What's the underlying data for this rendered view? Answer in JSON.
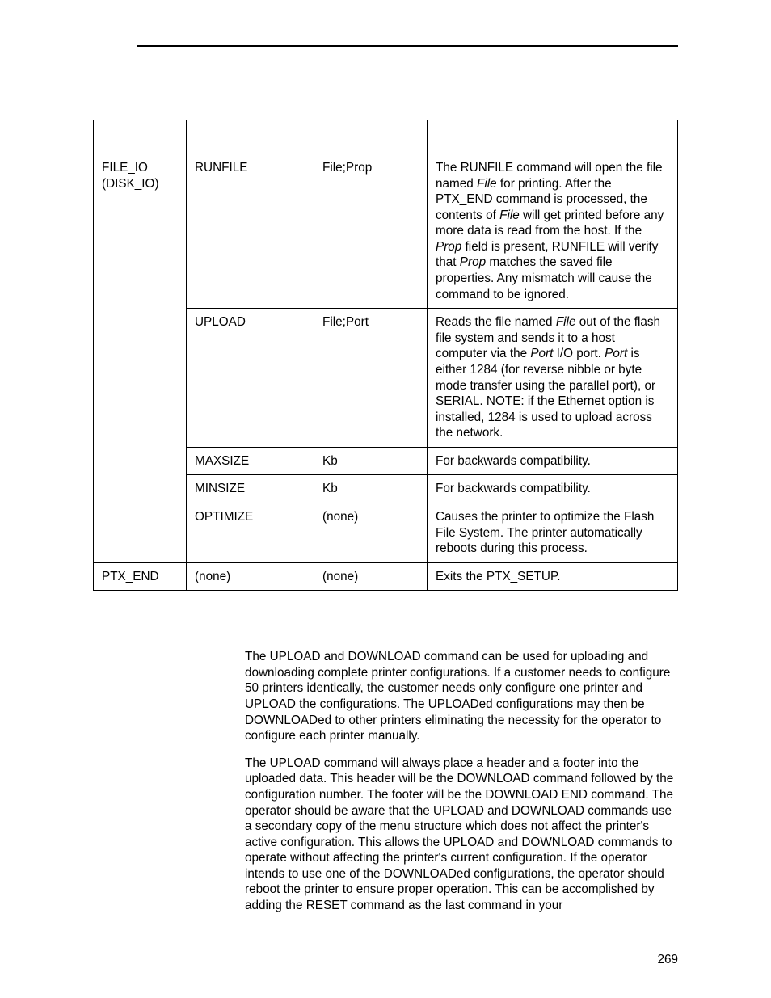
{
  "table": {
    "rows": [
      {
        "command": "FILE_IO\n(DISK_IO)",
        "command_rowspan": 5,
        "action": "RUNFILE",
        "param": "File;Prop",
        "desc_parts": [
          "The RUNFILE command will open the file named ",
          " for printing. After the PTX_END command is processed, the contents of ",
          " will get printed before any more data is read from the host. If the ",
          " field is present, RUNFILE will verify that ",
          " matches the saved file properties. Any mismatch will cause the command to be ignored."
        ],
        "desc_italics": [
          "File",
          "File",
          "Prop",
          "Prop"
        ]
      },
      {
        "action": "UPLOAD",
        "param": "File;Port",
        "desc_parts": [
          "Reads the file named ",
          " out of the flash file system and sends it to a host computer via the ",
          " I/O port. ",
          " is either 1284 (for reverse nibble or byte mode transfer using the parallel port), or SERIAL. NOTE: if the Ethernet option is installed, 1284 is used to upload across the network."
        ],
        "desc_italics": [
          "File",
          "Port",
          "Port"
        ]
      },
      {
        "action": "MAXSIZE",
        "param": "Kb",
        "desc": "For backwards compatibility."
      },
      {
        "action": "MINSIZE",
        "param": "Kb",
        "desc": "For backwards compatibility."
      },
      {
        "action": "OPTIMIZE",
        "param": "(none)",
        "desc": "Causes the printer to optimize the Flash File System. The printer automatically reboots during this process."
      },
      {
        "command": "PTX_END",
        "action": "(none)",
        "param": "(none)",
        "desc": "Exits the PTX_SETUP."
      }
    ]
  },
  "body": {
    "p1": "The UPLOAD and DOWNLOAD command can be used for uploading and downloading complete printer configurations. If a customer needs to configure 50 printers identically, the customer needs only configure one printer and UPLOAD the configurations. The UPLOADed configurations may then be DOWNLOADed to other printers eliminating the necessity for the operator to configure each printer manually.",
    "p2": "The UPLOAD command will always place a header and a footer into the uploaded data. This header will be the DOWNLOAD command followed by the configuration number. The footer will be the DOWNLOAD END command. The operator should be aware that the UPLOAD and DOWNLOAD commands use a secondary copy of the menu structure which does not affect the printer's active configuration. This allows the UPLOAD and DOWNLOAD commands to operate without affecting the printer's current configuration. If the operator intends to use one of the DOWNLOADed configurations, the operator should reboot the printer to ensure proper operation. This can be accomplished by adding the RESET command as the last command in your"
  },
  "page_number": "269",
  "colors": {
    "text": "#000000",
    "background": "#ffffff",
    "border": "#000000"
  },
  "fonts": {
    "body_size_pt": 11.5,
    "family": "Arial"
  }
}
